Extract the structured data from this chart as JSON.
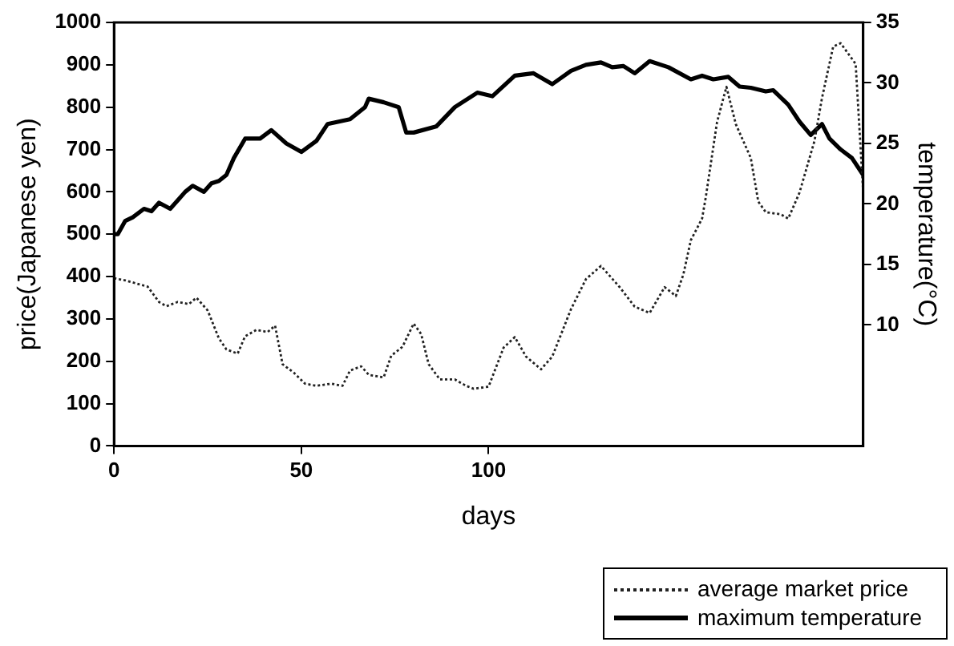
{
  "chart_data": {
    "type": "line",
    "xlabel": "days",
    "ylabel": "price(Japanese yen)",
    "y2label": "temperature(°C)",
    "xlim": [
      0,
      200
    ],
    "xticks": [
      0,
      50,
      100
    ],
    "ylim": [
      0,
      1000
    ],
    "yticks": [
      0,
      100,
      200,
      300,
      400,
      500,
      600,
      700,
      800,
      900,
      1000
    ],
    "y2lim": [
      0,
      35
    ],
    "y2ticks": [
      10,
      15,
      20,
      25,
      30,
      35
    ],
    "grid": false,
    "legend": "bottom right",
    "marker": "none",
    "series": [
      {
        "name": "average market price",
        "color": "#222222",
        "line_style": "dotted",
        "x": [
          0,
          3,
          7,
          9,
          12,
          14,
          17,
          20,
          22,
          25,
          28,
          30,
          33,
          35,
          38,
          41,
          43,
          45,
          48,
          51,
          54,
          58,
          61,
          63,
          66,
          68,
          72,
          74,
          77,
          80,
          82,
          84,
          87,
          91,
          94,
          96,
          100,
          104,
          107,
          110,
          114,
          117,
          122,
          126,
          130,
          135,
          139,
          143,
          147,
          150,
          152,
          154,
          157,
          158,
          161,
          163.5,
          166,
          170,
          172,
          174,
          178,
          180,
          183,
          187,
          189,
          192,
          194,
          198,
          200
        ],
        "values": [
          396,
          391,
          381,
          376,
          340,
          330,
          340,
          335,
          350,
          320,
          254,
          228,
          218,
          259,
          274,
          269,
          284,
          193,
          173,
          147,
          142,
          147,
          142,
          178,
          188,
          168,
          162,
          213,
          234,
          289,
          264,
          193,
          157,
          157,
          142,
          135,
          140,
          232,
          257,
          211,
          181,
          211,
          323,
          394,
          425,
          375,
          329,
          314,
          375,
          354,
          405,
          486,
          537,
          588,
          765,
          848,
          760,
          680,
          577,
          552,
          547,
          537,
          598,
          720,
          821,
          943,
          951,
          902,
          600
        ]
      },
      {
        "name": "maximum temperature",
        "color": "#000000",
        "line_style": "solid",
        "axis": "y2",
        "x": [
          0,
          1,
          3,
          5,
          8,
          10,
          12,
          15,
          17,
          19,
          21,
          24,
          26,
          28,
          30,
          32,
          35,
          39,
          42,
          46,
          50,
          54,
          57,
          63,
          67,
          68,
          72,
          76,
          78,
          80,
          86,
          91,
          97,
          101,
          107,
          112,
          117,
          122,
          126,
          130,
          133,
          136,
          139,
          143,
          148,
          154,
          157,
          160,
          164,
          167,
          170,
          174,
          176,
          180,
          183,
          186,
          189,
          191,
          194,
          197,
          200
        ],
        "values": [
          17.5,
          17.5,
          18.6,
          18.9,
          19.6,
          19.4,
          20.1,
          19.6,
          20.3,
          21.0,
          21.5,
          21.0,
          21.7,
          21.9,
          22.4,
          23.8,
          25.4,
          25.4,
          26.1,
          25.0,
          24.3,
          25.2,
          26.6,
          27.0,
          28.0,
          28.7,
          28.4,
          28.0,
          25.9,
          25.9,
          26.4,
          28.0,
          29.2,
          28.9,
          30.6,
          30.8,
          29.9,
          31.0,
          31.5,
          31.7,
          31.3,
          31.4,
          30.8,
          31.8,
          31.3,
          30.3,
          30.6,
          30.3,
          30.5,
          29.7,
          29.6,
          29.3,
          29.4,
          28.2,
          26.8,
          25.7,
          26.6,
          25.4,
          24.5,
          23.8,
          22.4
        ]
      }
    ]
  }
}
